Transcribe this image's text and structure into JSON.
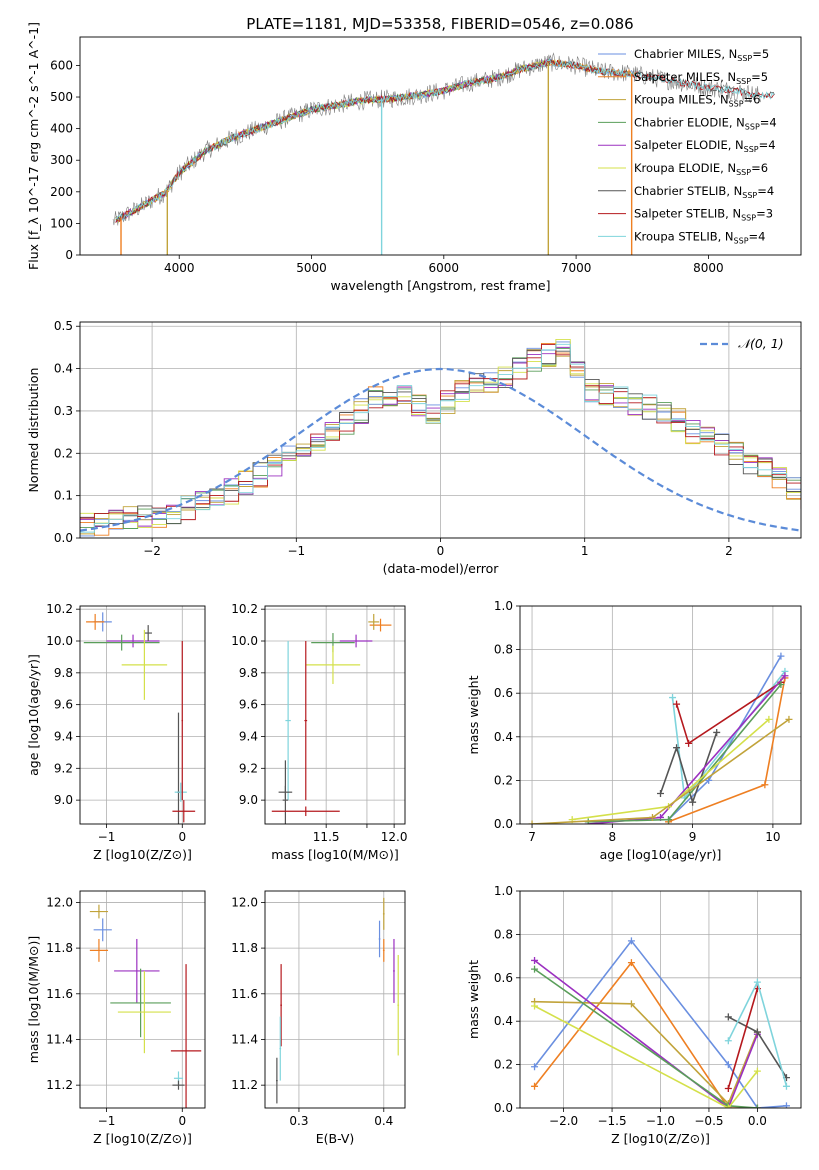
{
  "figure_title": "PLATE=1181, MJD=53358, FIBERID=0546, z=0.086",
  "model_colors": [
    "#6a8fe0",
    "#ee7f22",
    "#c1a33a",
    "#5a9e5a",
    "#9b30c0",
    "#d4e04a",
    "#555555",
    "#b5191e",
    "#7fd4dc"
  ],
  "chart_data": [
    {
      "id": "spectrum",
      "type": "line",
      "xlabel": "wavelength [Angstrom, rest frame]",
      "ylabel": "Flux [f_λ 10^-17 erg cm^-2 s^-1 A^-1]",
      "xlim": [
        3250,
        8700
      ],
      "ylim": [
        0,
        690
      ],
      "xticks": [
        4000,
        5000,
        6000,
        7000,
        8000
      ],
      "yticks": [
        0,
        100,
        200,
        300,
        400,
        500,
        600
      ],
      "grid": false,
      "legend_position": "top-right",
      "data_series": {
        "name": "",
        "color": "#808080",
        "x": [
          3500,
          3700,
          3900,
          4000,
          4200,
          4400,
          4600,
          4800,
          5000,
          5200,
          5400,
          5600,
          5800,
          6000,
          6200,
          6400,
          6600,
          6800,
          7000,
          7200,
          7400,
          7600,
          7800,
          8000,
          8200,
          8400
        ],
        "y": [
          105,
          150,
          200,
          260,
          330,
          370,
          400,
          430,
          460,
          475,
          490,
          495,
          505,
          520,
          545,
          560,
          590,
          610,
          600,
          580,
          575,
          560,
          545,
          530,
          520,
          505
        ]
      },
      "models": [
        {
          "label": "Chabrier MILES",
          "n_ssp": 5,
          "x_end": 7450
        },
        {
          "label": "Salpeter MILES",
          "n_ssp": 5,
          "x_end": 7450
        },
        {
          "label": "Kroupa MILES",
          "n_ssp": 6,
          "x_end": 7450
        },
        {
          "label": "Chabrier ELODIE",
          "n_ssp": 4,
          "x_end": 6800
        },
        {
          "label": "Salpeter ELODIE",
          "n_ssp": 4,
          "x_end": 6800
        },
        {
          "label": "Kroupa ELODIE",
          "n_ssp": 6,
          "x_end": 6800
        },
        {
          "label": "Chabrier STELIB",
          "n_ssp": 4,
          "x_end": 8500
        },
        {
          "label": "Salpeter STELIB",
          "n_ssp": 3,
          "x_end": 8500
        },
        {
          "label": "Kroupa STELIB",
          "n_ssp": 4,
          "x_end": 8500
        }
      ],
      "legend_sub": "SSP"
    },
    {
      "id": "residuals",
      "type": "histogram",
      "xlabel": "(data-model)/error",
      "ylabel": "Normed distribution",
      "xlim": [
        -2.5,
        2.5
      ],
      "ylim": [
        0,
        0.51
      ],
      "xticks": [
        -2,
        -1,
        0,
        1,
        2
      ],
      "yticks": [
        0.0,
        0.1,
        0.2,
        0.3,
        0.4,
        0.5
      ],
      "grid": true,
      "legend_position": "top-right",
      "reference_curve": {
        "label": "𝒩(0, 1)",
        "mean": 0,
        "sigma": 1,
        "color": "#5b8bd8"
      },
      "bin_width": 0.1,
      "bin_start": -2.5,
      "base_histogram": [
        0.03,
        0.03,
        0.04,
        0.05,
        0.05,
        0.05,
        0.06,
        0.07,
        0.08,
        0.1,
        0.11,
        0.13,
        0.15,
        0.17,
        0.19,
        0.21,
        0.23,
        0.25,
        0.27,
        0.3,
        0.33,
        0.34,
        0.33,
        0.31,
        0.29,
        0.32,
        0.35,
        0.36,
        0.37,
        0.38,
        0.4,
        0.42,
        0.43,
        0.44,
        0.39,
        0.35,
        0.34,
        0.33,
        0.32,
        0.31,
        0.3,
        0.28,
        0.25,
        0.24,
        0.22,
        0.2,
        0.18,
        0.16,
        0.14,
        0.12,
        0.1,
        0.09,
        0.08,
        0.07,
        0.06,
        0.05,
        0.04,
        0.04,
        0.03,
        0.03
      ]
    },
    {
      "id": "age_vs_Z",
      "type": "errorbar",
      "xlabel": "Z [log10(Z/Z⊙)]",
      "ylabel": "age  [log10(age/yr)]",
      "xlim": [
        -1.35,
        0.3
      ],
      "ylim": [
        8.85,
        10.22
      ],
      "xticks": [
        -1,
        0
      ],
      "yticks": [
        9.0,
        9.2,
        9.4,
        9.6,
        9.8,
        10.0,
        10.2
      ],
      "grid": true,
      "points": [
        {
          "model": 0,
          "x": -1.05,
          "xerr": 0.12,
          "y": 10.12,
          "yerr": 0.06
        },
        {
          "model": 1,
          "x": -1.15,
          "xerr": 0.12,
          "y": 10.12,
          "yerr": 0.05
        },
        {
          "model": 4,
          "x": -0.65,
          "xerr": 0.35,
          "y": 10.0,
          "yerr": 0.04
        },
        {
          "model": 3,
          "x": -0.8,
          "xerr": 0.5,
          "y": 9.99,
          "yerr": 0.05
        },
        {
          "model": 6,
          "x": -0.45,
          "xerr": 0.05,
          "y": 10.05,
          "yerr": 0.05
        },
        {
          "model": 5,
          "x": -0.5,
          "xerr": 0.3,
          "y": 9.85,
          "yerr": 0.22
        },
        {
          "model": 6,
          "x": -0.05,
          "xerr": 0.02,
          "y": 9.05,
          "yerr": 0.5
        },
        {
          "model": 7,
          "x": 0.02,
          "xerr": 0.15,
          "y": 8.93,
          "yerr": 0.07
        },
        {
          "model": 8,
          "x": -0.02,
          "xerr": 0.08,
          "y": 9.05,
          "yerr": 0.06
        },
        {
          "model": 7,
          "x": 0.0,
          "xerr": 0.01,
          "y": 9.5,
          "yerr": 0.5
        }
      ]
    },
    {
      "id": "age_vs_mass",
      "type": "errorbar",
      "xlabel": "mass [log10(M/M⊙)]",
      "ylabel": "",
      "xlim": [
        11.05,
        12.08
      ],
      "ylim": [
        8.85,
        10.22
      ],
      "xticks": [
        11.5,
        11.8,
        12.0
      ],
      "xtick_labels": [
        "11.5",
        "",
        "12.0"
      ],
      "yticks": [
        9.0,
        9.2,
        9.4,
        9.6,
        9.8,
        10.0,
        10.2
      ],
      "grid": true,
      "points": [
        {
          "model": 1,
          "x": 11.9,
          "xerr": 0.08,
          "y": 10.1,
          "yerr": 0.04
        },
        {
          "model": 2,
          "x": 11.85,
          "xerr": 0.04,
          "y": 10.12,
          "yerr": 0.05
        },
        {
          "model": 4,
          "x": 11.72,
          "xerr": 0.12,
          "y": 10.0,
          "yerr": 0.04
        },
        {
          "model": 3,
          "x": 11.55,
          "xerr": 0.16,
          "y": 9.99,
          "yerr": 0.06
        },
        {
          "model": 5,
          "x": 11.55,
          "xerr": 0.2,
          "y": 9.85,
          "yerr": 0.12
        },
        {
          "model": 8,
          "x": 11.22,
          "xerr": 0.02,
          "y": 9.5,
          "yerr": 0.5
        },
        {
          "model": 6,
          "x": 11.2,
          "xerr": 0.02,
          "y": 9.0,
          "yerr": 0.25
        },
        {
          "model": 7,
          "x": 11.35,
          "xerr": 0.25,
          "y": 8.93,
          "yerr": 0.03
        },
        {
          "model": 7,
          "x": 11.35,
          "xerr": 0.01,
          "y": 9.5,
          "yerr": 0.5
        },
        {
          "model": 6,
          "x": 11.2,
          "xerr": 0.05,
          "y": 9.05,
          "yerr": 0.04
        }
      ]
    },
    {
      "id": "weight_vs_age",
      "type": "line",
      "xlabel": "age  [log10(age/yr)]",
      "ylabel": "mass weight",
      "xlim": [
        6.85,
        10.35
      ],
      "ylim": [
        0,
        1.0
      ],
      "xticks": [
        7,
        8,
        9,
        10
      ],
      "yticks": [
        0.0,
        0.2,
        0.4,
        0.6,
        0.8,
        1.0
      ],
      "grid": true,
      "series": [
        {
          "model": 0,
          "x": [
            8.7,
            9.2,
            10.1
          ],
          "y": [
            0.02,
            0.2,
            0.77
          ]
        },
        {
          "model": 1,
          "x": [
            8.7,
            9.9,
            10.15
          ],
          "y": [
            0.01,
            0.18,
            0.67
          ]
        },
        {
          "model": 8,
          "x": [
            8.75,
            8.9,
            10.15
          ],
          "y": [
            0.58,
            0.12,
            0.7
          ]
        },
        {
          "model": 6,
          "x": [
            8.6,
            8.8,
            9.0,
            9.3
          ],
          "y": [
            0.14,
            0.35,
            0.1,
            0.42
          ]
        },
        {
          "model": 7,
          "x": [
            8.8,
            8.95,
            10.1
          ],
          "y": [
            0.55,
            0.37,
            0.65
          ]
        },
        {
          "model": 4,
          "x": [
            7.7,
            8.6,
            10.15
          ],
          "y": [
            0.0,
            0.03,
            0.68
          ]
        },
        {
          "model": 3,
          "x": [
            7.7,
            8.7,
            10.1
          ],
          "y": [
            0.01,
            0.02,
            0.64
          ]
        },
        {
          "model": 5,
          "x": [
            7.5,
            8.7,
            9.95
          ],
          "y": [
            0.02,
            0.08,
            0.48
          ]
        },
        {
          "model": 2,
          "x": [
            7.0,
            8.5,
            10.2
          ],
          "y": [
            0.0,
            0.03,
            0.48
          ]
        }
      ]
    },
    {
      "id": "mass_vs_Z",
      "type": "errorbar",
      "xlabel": "Z [log10(Z/Z⊙)]",
      "ylabel": "mass [log10(M/M⊙)]",
      "xlim": [
        -1.35,
        0.3
      ],
      "ylim": [
        11.1,
        12.05
      ],
      "xticks": [
        -1,
        0
      ],
      "yticks": [
        11.2,
        11.4,
        11.6,
        11.8,
        12.0
      ],
      "grid": true,
      "points": [
        {
          "model": 2,
          "x": -1.1,
          "xerr": 0.12,
          "y": 11.96,
          "yerr": 0.03
        },
        {
          "model": 0,
          "x": -1.05,
          "xerr": 0.12,
          "y": 11.88,
          "yerr": 0.05
        },
        {
          "model": 1,
          "x": -1.1,
          "xerr": 0.12,
          "y": 11.79,
          "yerr": 0.05
        },
        {
          "model": 4,
          "x": -0.6,
          "xerr": 0.3,
          "y": 11.7,
          "yerr": 0.14
        },
        {
          "model": 3,
          "x": -0.55,
          "xerr": 0.4,
          "y": 11.56,
          "yerr": 0.15
        },
        {
          "model": 5,
          "x": -0.5,
          "xerr": 0.35,
          "y": 11.52,
          "yerr": 0.18
        },
        {
          "model": 7,
          "x": 0.05,
          "xerr": 0.2,
          "y": 11.35,
          "yerr": 0.38
        },
        {
          "model": 8,
          "x": -0.05,
          "xerr": 0.06,
          "y": 11.23,
          "yerr": 0.03
        },
        {
          "model": 6,
          "x": -0.05,
          "xerr": 0.08,
          "y": 11.2,
          "yerr": 0.02
        }
      ]
    },
    {
      "id": "mass_vs_ebv",
      "type": "errorbar",
      "xlabel": "E(B-V)",
      "ylabel": "",
      "xlim": [
        0.26,
        0.425
      ],
      "ylim": [
        11.1,
        12.05
      ],
      "xticks": [
        0.3,
        0.4
      ],
      "yticks": [
        11.2,
        11.4,
        11.6,
        11.8,
        12.0
      ],
      "grid": true,
      "points": [
        {
          "model": 2,
          "x": 0.4,
          "xerr": 0.001,
          "y": 11.95,
          "yerr": 0.07
        },
        {
          "model": 0,
          "x": 0.395,
          "xerr": 0.001,
          "y": 11.84,
          "yerr": 0.08
        },
        {
          "model": 1,
          "x": 0.4,
          "xerr": 0.001,
          "y": 11.79,
          "yerr": 0.05
        },
        {
          "model": 4,
          "x": 0.412,
          "xerr": 0.001,
          "y": 11.7,
          "yerr": 0.14
        },
        {
          "model": 5,
          "x": 0.417,
          "xerr": 0.001,
          "y": 11.55,
          "yerr": 0.22
        },
        {
          "model": 7,
          "x": 0.279,
          "xerr": 0.001,
          "y": 11.55,
          "yerr": 0.18
        },
        {
          "model": 8,
          "x": 0.278,
          "xerr": 0.001,
          "y": 11.36,
          "yerr": 0.14
        },
        {
          "model": 6,
          "x": 0.274,
          "xerr": 0.001,
          "y": 11.22,
          "yerr": 0.1
        }
      ]
    },
    {
      "id": "weight_vs_Z",
      "type": "line",
      "xlabel": "Z [log10(Z/Z⊙)]",
      "ylabel": "mass weight",
      "xlim": [
        -2.45,
        0.45
      ],
      "ylim": [
        0,
        1.0
      ],
      "xticks": [
        -2.0,
        -1.5,
        -1.0,
        -0.5,
        0.0
      ],
      "yticks": [
        0.0,
        0.2,
        0.4,
        0.6,
        0.8,
        1.0
      ],
      "grid": true,
      "series": [
        {
          "model": 0,
          "x": [
            -2.3,
            -1.3,
            -0.3,
            0.0,
            0.3
          ],
          "y": [
            0.19,
            0.77,
            0.2,
            0.0,
            0.01
          ]
        },
        {
          "model": 1,
          "x": [
            -2.3,
            -1.3,
            -0.3,
            0.0
          ],
          "y": [
            0.1,
            0.67,
            0.0,
            0.0
          ]
        },
        {
          "model": 2,
          "x": [
            -2.3,
            -1.3,
            -0.3,
            0.0
          ],
          "y": [
            0.49,
            0.48,
            0.02,
            0.35
          ]
        },
        {
          "model": 4,
          "x": [
            -2.3,
            -0.3,
            0.0
          ],
          "y": [
            0.68,
            0.0,
            0.34
          ]
        },
        {
          "model": 3,
          "x": [
            -2.3,
            -0.3,
            0.0
          ],
          "y": [
            0.64,
            0.01,
            0.0
          ]
        },
        {
          "model": 5,
          "x": [
            -2.3,
            -0.3,
            0.0
          ],
          "y": [
            0.47,
            0.0,
            0.17
          ]
        },
        {
          "model": 6,
          "x": [
            -0.3,
            0.0,
            0.3
          ],
          "y": [
            0.42,
            0.35,
            0.14
          ]
        },
        {
          "model": 7,
          "x": [
            -0.3,
            0.0
          ],
          "y": [
            0.09,
            0.55
          ]
        },
        {
          "model": 8,
          "x": [
            -0.3,
            0.0,
            0.3
          ],
          "y": [
            0.31,
            0.58,
            0.1
          ]
        }
      ]
    }
  ]
}
